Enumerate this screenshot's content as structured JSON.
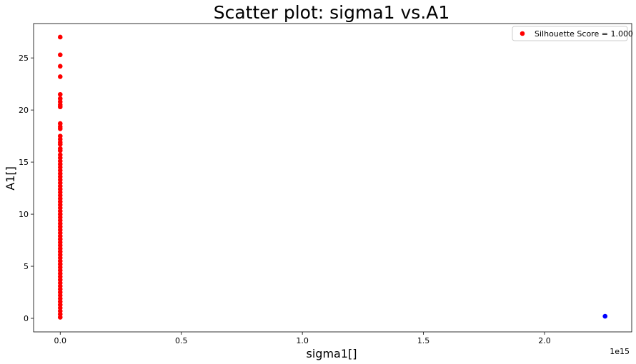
{
  "chart_data": {
    "type": "scatter",
    "title": "Scatter plot: sigma1 vs.A1",
    "xlabel": "sigma1[]",
    "ylabel": "A1[]",
    "x_offset_label": "1e15",
    "x_scale_exponent": 15,
    "xlim": [
      -0.11,
      2.36
    ],
    "ylim": [
      -1.3,
      28.3
    ],
    "x_ticks": [
      0.0,
      0.5,
      1.0,
      1.5,
      2.0
    ],
    "x_tick_labels": [
      "0.0",
      "0.5",
      "1.0",
      "1.5",
      "2.0"
    ],
    "y_ticks": [
      0,
      5,
      10,
      15,
      20,
      25
    ],
    "y_tick_labels": [
      "0",
      "5",
      "10",
      "15",
      "20",
      "25"
    ],
    "grid": false,
    "legend": {
      "position": "top-right",
      "entries": [
        {
          "label": "Silhouette Score = 1.000",
          "color": "#ff0000"
        }
      ]
    },
    "series": [
      {
        "name": "Silhouette Score = 1.000",
        "color": "#ff0000",
        "points": [
          [
            0,
            27.0
          ],
          [
            0,
            25.3
          ],
          [
            0,
            24.2
          ],
          [
            0,
            23.2
          ],
          [
            0,
            21.5
          ],
          [
            0,
            21.1
          ],
          [
            0,
            20.8
          ],
          [
            0,
            20.5
          ],
          [
            0,
            20.3
          ],
          [
            0,
            18.7
          ],
          [
            0,
            18.4
          ],
          [
            0,
            18.2
          ],
          [
            0,
            17.5
          ],
          [
            0,
            17.2
          ],
          [
            0,
            16.9
          ],
          [
            0,
            16.7
          ],
          [
            0,
            16.3
          ],
          [
            0,
            16.1
          ],
          [
            0,
            15.7
          ],
          [
            0,
            15.4
          ],
          [
            0,
            15.1
          ],
          [
            0,
            14.8
          ],
          [
            0,
            14.5
          ],
          [
            0,
            14.2
          ],
          [
            0,
            13.9
          ],
          [
            0,
            13.6
          ],
          [
            0,
            13.3
          ],
          [
            0,
            13.0
          ],
          [
            0,
            12.7
          ],
          [
            0,
            12.4
          ],
          [
            0,
            12.1
          ],
          [
            0,
            11.8
          ],
          [
            0,
            11.5
          ],
          [
            0,
            11.2
          ],
          [
            0,
            10.9
          ],
          [
            0,
            10.6
          ],
          [
            0,
            10.3
          ],
          [
            0,
            10.0
          ],
          [
            0,
            9.7
          ],
          [
            0,
            9.4
          ],
          [
            0,
            9.1
          ],
          [
            0,
            8.8
          ],
          [
            0,
            8.5
          ],
          [
            0,
            8.2
          ],
          [
            0,
            7.9
          ],
          [
            0,
            7.6
          ],
          [
            0,
            7.3
          ],
          [
            0,
            7.0
          ],
          [
            0,
            6.7
          ],
          [
            0,
            6.4
          ],
          [
            0,
            6.1
          ],
          [
            0,
            5.8
          ],
          [
            0,
            5.5
          ],
          [
            0,
            5.2
          ],
          [
            0,
            4.9
          ],
          [
            0,
            4.6
          ],
          [
            0,
            4.3
          ],
          [
            0,
            4.0
          ],
          [
            0,
            3.7
          ],
          [
            0,
            3.4
          ],
          [
            0,
            3.1
          ],
          [
            0,
            2.8
          ],
          [
            0,
            2.5
          ],
          [
            0,
            2.2
          ],
          [
            0,
            1.9
          ],
          [
            0,
            1.6
          ],
          [
            0,
            1.3
          ],
          [
            0,
            1.0
          ],
          [
            0,
            0.7
          ],
          [
            0,
            0.4
          ],
          [
            0,
            0.1
          ]
        ]
      },
      {
        "color": "#0000ff",
        "points": [
          [
            2.25,
            0.2
          ]
        ]
      }
    ]
  }
}
